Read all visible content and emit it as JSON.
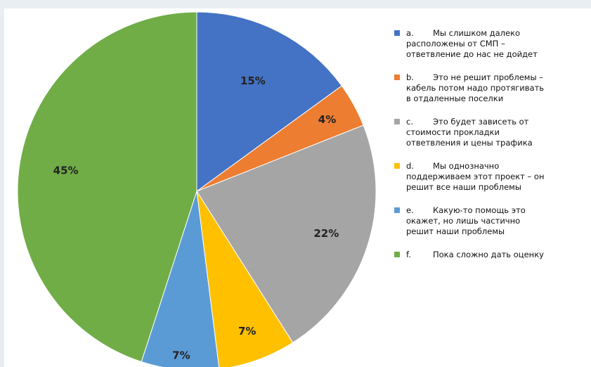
{
  "chart_data": {
    "type": "pie",
    "start_angle_deg": 0,
    "direction": "clockwise",
    "slices": [
      {
        "letter": "a.",
        "lines": [
          "Мы слишком далеко",
          "расположены от СМП –",
          "ответвление до нас не дойдет"
        ],
        "value": 15,
        "label": "15%",
        "color": "#4472c4"
      },
      {
        "letter": "b.",
        "lines": [
          "Это не решит проблемы –",
          "кабель потом надо протягивать",
          "в отдаленные поселки"
        ],
        "value": 4,
        "label": "4%",
        "color": "#ed7d31"
      },
      {
        "letter": "c.",
        "lines": [
          "Это будет зависеть от",
          "стоимости прокладки",
          "ответвления и цены трафика"
        ],
        "value": 22,
        "label": "22%",
        "color": "#a5a5a5"
      },
      {
        "letter": "d.",
        "lines": [
          "Мы однозначно",
          "поддерживаем этот проект – он",
          "решит все наши проблемы"
        ],
        "value": 7,
        "label": "7%",
        "color": "#ffc000"
      },
      {
        "letter": "e.",
        "lines": [
          "Какую-то помощь это",
          "окажет, но лишь частично",
          "решит наши проблемы"
        ],
        "value": 7,
        "label": "7%",
        "color": "#5b9bd5"
      },
      {
        "letter": "f.",
        "lines": [
          "Пока сложно дать оценку"
        ],
        "value": 45,
        "label": "45%",
        "color": "#70ad47"
      }
    ],
    "legend_position": "right"
  }
}
